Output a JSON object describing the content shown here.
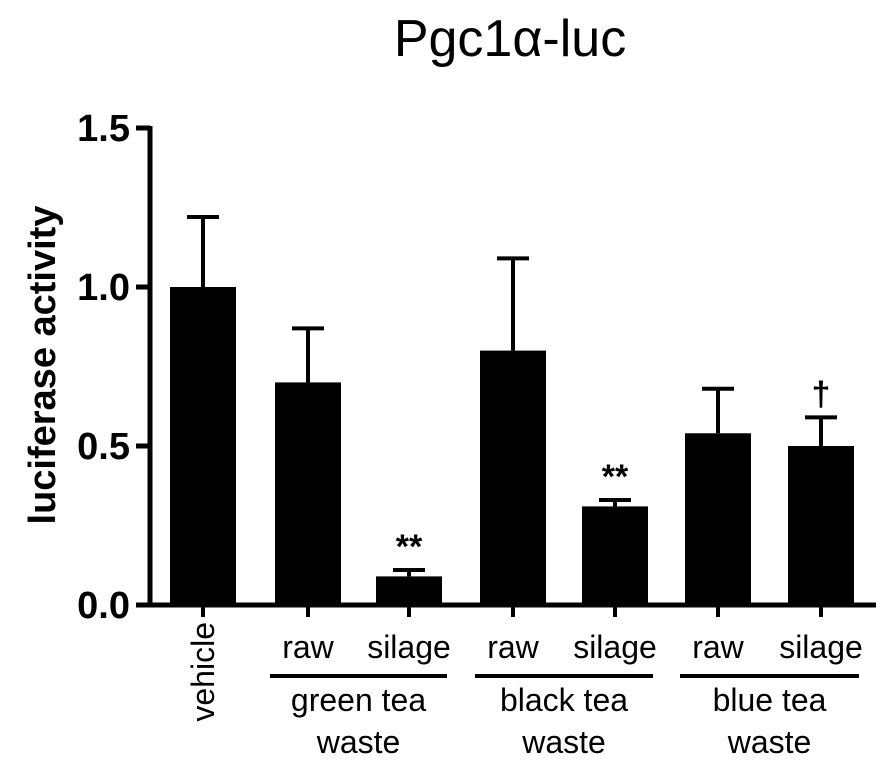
{
  "chart_data": {
    "type": "bar",
    "title": "Pgc1α-luc",
    "ylabel": "luciferase activity",
    "xlabel": "",
    "ylim": [
      0,
      1.5
    ],
    "yticks": [
      "0.0",
      "0.5",
      "1.0",
      "1.5"
    ],
    "categories": [
      "vehicle",
      "raw",
      "silage",
      "raw",
      "silage",
      "raw",
      "silage"
    ],
    "values": [
      1.0,
      0.7,
      0.09,
      0.8,
      0.31,
      0.54,
      0.5
    ],
    "errors": [
      0.22,
      0.17,
      0.02,
      0.29,
      0.02,
      0.14,
      0.09
    ],
    "annotations": [
      "",
      "",
      "**",
      "",
      "**",
      "",
      "†"
    ],
    "groups": [
      {
        "label_line1": "green tea",
        "label_line2": "waste",
        "members": [
          1,
          2
        ]
      },
      {
        "label_line1": "black tea",
        "label_line2": "waste",
        "members": [
          3,
          4
        ]
      },
      {
        "label_line1": "blue tea",
        "label_line2": "waste",
        "members": [
          5,
          6
        ]
      }
    ],
    "bar_color": "#000000"
  }
}
